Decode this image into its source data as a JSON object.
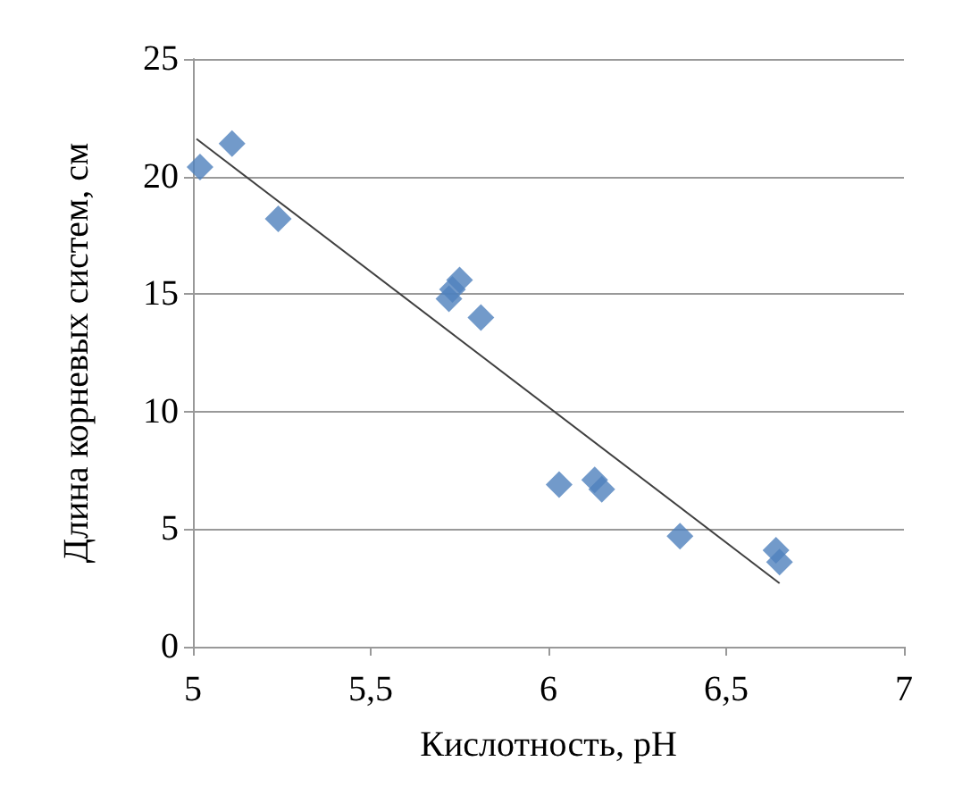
{
  "chart_data": {
    "type": "scatter",
    "xlabel": "Кислотность, pH",
    "ylabel": "Длина корневых систем, см",
    "xlim": [
      5,
      7
    ],
    "xticks": [
      5,
      {
        "value": 5.5,
        "label": "5,5"
      },
      6,
      {
        "value": 6.5,
        "label": "6,5"
      },
      7
    ],
    "ylim": [
      0,
      25
    ],
    "yticks": [
      0,
      5,
      10,
      15,
      20,
      25
    ],
    "grid": "y",
    "marker": "diamond",
    "series": [
      {
        "color": "#4f81bd",
        "x": [
          5.02,
          5.11,
          5.24,
          5.72,
          5.73,
          5.75,
          5.81,
          6.03,
          6.13,
          6.15,
          6.37,
          6.64,
          6.65
        ],
        "values": [
          20.4,
          21.4,
          18.2,
          14.8,
          15.2,
          15.6,
          14.0,
          6.9,
          7.1,
          6.7,
          4.7,
          4.1,
          3.6
        ]
      },
      {
        "type": "line",
        "color": "#404040",
        "marker": "none",
        "x": [
          5.01,
          6.65
        ],
        "values": [
          21.6,
          2.7
        ]
      }
    ]
  }
}
